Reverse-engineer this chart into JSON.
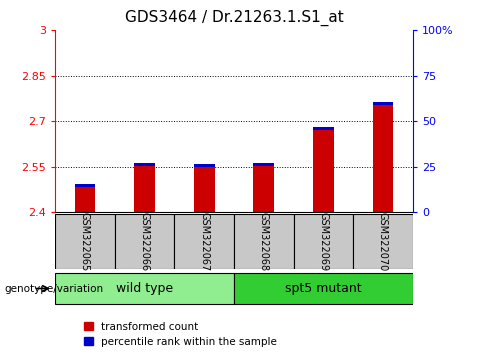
{
  "title": "GDS3464 / Dr.21263.1.S1_at",
  "samples": [
    "GSM322065",
    "GSM322066",
    "GSM322067",
    "GSM322068",
    "GSM322069",
    "GSM322070"
  ],
  "red_tops": [
    2.492,
    2.562,
    2.558,
    2.563,
    2.682,
    2.764
  ],
  "blue_bottoms": [
    2.484,
    2.552,
    2.548,
    2.553,
    2.672,
    2.752
  ],
  "blue_heights": [
    0.008,
    0.01,
    0.01,
    0.01,
    0.01,
    0.012
  ],
  "y_min": 2.4,
  "y_max": 3.0,
  "y_ticks_left": [
    2.4,
    2.55,
    2.7,
    2.85,
    3.0
  ],
  "y_tick_labels_left": [
    "2.4",
    "2.55",
    "2.7",
    "2.85",
    "3"
  ],
  "y_ticks_right": [
    0,
    25,
    50,
    75,
    100
  ],
  "y_tick_labels_right": [
    "0",
    "25",
    "50",
    "75",
    "100%"
  ],
  "grid_lines": [
    2.55,
    2.7,
    2.85
  ],
  "groups": [
    {
      "label": "wild type",
      "start": 0,
      "end": 3,
      "color": "#90EE90"
    },
    {
      "label": "spt5 mutant",
      "start": 3,
      "end": 6,
      "color": "#32CD32"
    }
  ],
  "bar_color_red": "#CC0000",
  "bar_color_blue": "#0000CC",
  "bar_width": 0.35,
  "group_label": "genotype/variation",
  "legend_red": "transformed count",
  "legend_blue": "percentile rank within the sample",
  "bg_color": "#FFFFFF",
  "tick_area_color": "#C8C8C8",
  "title_fontsize": 11,
  "tick_fontsize": 8
}
